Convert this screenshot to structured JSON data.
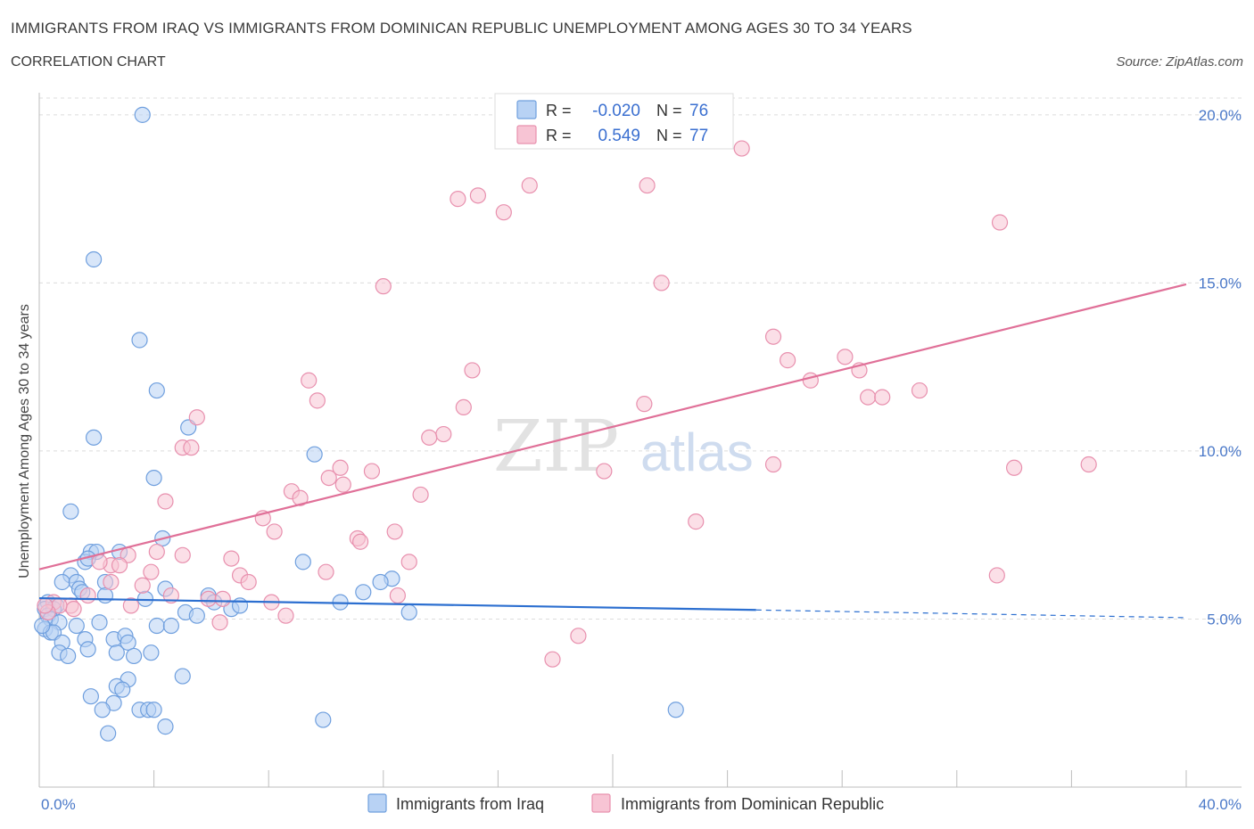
{
  "header": {
    "title": "IMMIGRANTS FROM IRAQ VS IMMIGRANTS FROM DOMINICAN REPUBLIC UNEMPLOYMENT AMONG AGES 30 TO 34 YEARS",
    "subtitle": "CORRELATION CHART",
    "source": "Source: ZipAtlas.com"
  },
  "watermark": {
    "zip": "ZIP",
    "atlas": "atlas"
  },
  "legend_box": {
    "rows": [
      {
        "r_label": "R =",
        "r_value": "-0.020",
        "n_label": "N =",
        "n_value": "76"
      },
      {
        "r_label": "R =",
        "r_value": "0.549",
        "n_label": "N =",
        "n_value": "77"
      }
    ]
  },
  "bottom_legend": {
    "items": [
      "Immigrants from Iraq",
      "Immigrants from Dominican Republic"
    ]
  },
  "colors": {
    "iraq_fill": "#b8d2f4",
    "iraq_stroke": "#6f9fde",
    "iraq_line": "#2c6fd0",
    "dom_fill": "#f7c4d4",
    "dom_stroke": "#e890ae",
    "dom_line": "#e07098",
    "grid": "#dcdcdc",
    "tick_text": "#4a78c8"
  },
  "chart_data": {
    "type": "scatter",
    "title": "IMMIGRANTS FROM IRAQ VS IMMIGRANTS FROM DOMINICAN REPUBLIC UNEMPLOYMENT AMONG AGES 30 TO 34 YEARS",
    "xlabel": "",
    "ylabel": "Unemployment Among Ages 30 to 34 years",
    "xlim": [
      0,
      40
    ],
    "ylim": [
      0,
      20.5
    ],
    "x_tick_labels": [
      "0.0%",
      "40.0%"
    ],
    "y_ticks": [
      5,
      10,
      15,
      20
    ],
    "y_tick_labels": [
      "5.0%",
      "10.0%",
      "15.0%",
      "20.0%"
    ],
    "grid": true,
    "series": [
      {
        "name": "Immigrants from Iraq",
        "R": -0.02,
        "N": 76,
        "trend": {
          "x0": 0,
          "y0": 5.62,
          "x1": 25.0,
          "y1": 5.27,
          "dashed_to_x": 40.0,
          "dashed_to_y": 5.04
        },
        "points": [
          [
            3.6,
            20.0
          ],
          [
            1.9,
            15.7
          ],
          [
            3.5,
            13.3
          ],
          [
            4.1,
            11.8
          ],
          [
            5.2,
            10.7
          ],
          [
            1.9,
            10.4
          ],
          [
            9.6,
            9.9
          ],
          [
            4.0,
            9.2
          ],
          [
            1.1,
            8.2
          ],
          [
            4.3,
            7.4
          ],
          [
            1.8,
            7.0
          ],
          [
            2.0,
            7.0
          ],
          [
            2.8,
            7.0
          ],
          [
            1.6,
            6.7
          ],
          [
            1.7,
            6.8
          ],
          [
            9.2,
            6.7
          ],
          [
            1.1,
            6.3
          ],
          [
            0.8,
            6.1
          ],
          [
            1.3,
            6.1
          ],
          [
            2.3,
            6.1
          ],
          [
            12.3,
            6.2
          ],
          [
            11.9,
            6.1
          ],
          [
            1.4,
            5.9
          ],
          [
            1.5,
            5.8
          ],
          [
            4.4,
            5.9
          ],
          [
            2.3,
            5.7
          ],
          [
            3.7,
            5.6
          ],
          [
            11.3,
            5.8
          ],
          [
            5.9,
            5.7
          ],
          [
            6.1,
            5.5
          ],
          [
            0.3,
            5.5
          ],
          [
            0.6,
            5.4
          ],
          [
            0.2,
            5.3
          ],
          [
            0.5,
            5.3
          ],
          [
            0.3,
            5.1
          ],
          [
            0.4,
            5.0
          ],
          [
            0.7,
            4.9
          ],
          [
            1.3,
            4.8
          ],
          [
            2.1,
            4.9
          ],
          [
            4.1,
            4.8
          ],
          [
            4.6,
            4.8
          ],
          [
            5.1,
            5.2
          ],
          [
            5.5,
            5.1
          ],
          [
            6.7,
            5.3
          ],
          [
            7.0,
            5.4
          ],
          [
            10.5,
            5.5
          ],
          [
            12.9,
            5.2
          ],
          [
            0.2,
            4.7
          ],
          [
            0.4,
            4.6
          ],
          [
            0.5,
            4.6
          ],
          [
            1.6,
            4.4
          ],
          [
            2.6,
            4.4
          ],
          [
            3.0,
            4.5
          ],
          [
            3.1,
            4.3
          ],
          [
            0.8,
            4.3
          ],
          [
            0.7,
            4.0
          ],
          [
            1.0,
            3.9
          ],
          [
            1.7,
            4.1
          ],
          [
            2.7,
            4.0
          ],
          [
            3.3,
            3.9
          ],
          [
            3.9,
            4.0
          ],
          [
            3.1,
            3.2
          ],
          [
            5.0,
            3.3
          ],
          [
            2.7,
            3.0
          ],
          [
            2.9,
            2.9
          ],
          [
            1.8,
            2.7
          ],
          [
            2.6,
            2.5
          ],
          [
            2.2,
            2.3
          ],
          [
            3.5,
            2.3
          ],
          [
            3.8,
            2.3
          ],
          [
            4.0,
            2.3
          ],
          [
            9.9,
            2.0
          ],
          [
            4.4,
            1.8
          ],
          [
            2.4,
            1.6
          ],
          [
            22.2,
            2.3
          ],
          [
            0.1,
            4.8
          ]
        ]
      },
      {
        "name": "Immigrants from Dominican Republic",
        "R": 0.549,
        "N": 77,
        "trend": {
          "x0": 0,
          "y0": 6.48,
          "x1": 40.0,
          "y1": 14.96
        },
        "points": [
          [
            24.5,
            19.0
          ],
          [
            17.1,
            17.9
          ],
          [
            21.2,
            17.9
          ],
          [
            14.6,
            17.5
          ],
          [
            15.3,
            17.6
          ],
          [
            16.2,
            17.1
          ],
          [
            33.5,
            16.8
          ],
          [
            12.0,
            14.9
          ],
          [
            21.7,
            15.0
          ],
          [
            25.6,
            13.4
          ],
          [
            26.1,
            12.7
          ],
          [
            28.1,
            12.8
          ],
          [
            28.6,
            12.4
          ],
          [
            26.9,
            12.1
          ],
          [
            15.1,
            12.4
          ],
          [
            9.4,
            12.1
          ],
          [
            9.7,
            11.5
          ],
          [
            14.8,
            11.3
          ],
          [
            21.1,
            11.4
          ],
          [
            30.7,
            11.8
          ],
          [
            28.9,
            11.6
          ],
          [
            29.4,
            11.6
          ],
          [
            5.5,
            11.0
          ],
          [
            14.1,
            10.5
          ],
          [
            13.6,
            10.4
          ],
          [
            5.0,
            10.1
          ],
          [
            5.3,
            10.1
          ],
          [
            25.6,
            9.6
          ],
          [
            34.0,
            9.5
          ],
          [
            36.6,
            9.6
          ],
          [
            19.7,
            9.4
          ],
          [
            10.5,
            9.5
          ],
          [
            11.6,
            9.4
          ],
          [
            10.1,
            9.2
          ],
          [
            10.6,
            9.0
          ],
          [
            8.8,
            8.8
          ],
          [
            9.1,
            8.6
          ],
          [
            13.3,
            8.7
          ],
          [
            4.4,
            8.5
          ],
          [
            7.8,
            8.0
          ],
          [
            22.9,
            7.9
          ],
          [
            8.2,
            7.6
          ],
          [
            12.4,
            7.6
          ],
          [
            11.1,
            7.4
          ],
          [
            11.2,
            7.3
          ],
          [
            4.1,
            7.0
          ],
          [
            5.0,
            6.9
          ],
          [
            3.1,
            6.9
          ],
          [
            6.7,
            6.8
          ],
          [
            2.5,
            6.6
          ],
          [
            2.1,
            6.7
          ],
          [
            2.8,
            6.6
          ],
          [
            12.9,
            6.7
          ],
          [
            33.4,
            6.3
          ],
          [
            3.9,
            6.4
          ],
          [
            10.0,
            6.4
          ],
          [
            7.0,
            6.3
          ],
          [
            7.3,
            6.1
          ],
          [
            2.5,
            6.1
          ],
          [
            3.6,
            6.0
          ],
          [
            1.7,
            5.7
          ],
          [
            4.6,
            5.7
          ],
          [
            12.5,
            5.7
          ],
          [
            5.9,
            5.6
          ],
          [
            6.4,
            5.6
          ],
          [
            8.1,
            5.5
          ],
          [
            3.2,
            5.4
          ],
          [
            1.1,
            5.4
          ],
          [
            1.2,
            5.3
          ],
          [
            0.5,
            5.5
          ],
          [
            0.7,
            5.4
          ],
          [
            0.3,
            5.2
          ],
          [
            8.6,
            5.1
          ],
          [
            6.3,
            4.9
          ],
          [
            18.8,
            4.5
          ],
          [
            17.9,
            3.8
          ],
          [
            0.2,
            5.4
          ]
        ]
      }
    ]
  }
}
